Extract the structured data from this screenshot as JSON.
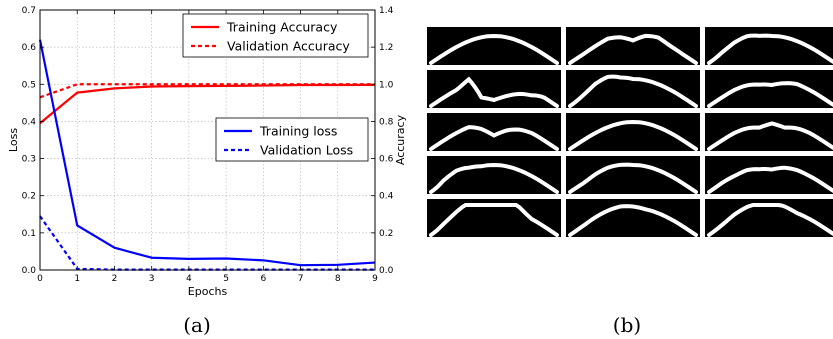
{
  "chart_data": {
    "type": "line",
    "x": [
      0,
      1,
      2,
      3,
      4,
      5,
      6,
      7,
      8,
      9
    ],
    "xlabel": "Epochs",
    "ylabel": "Loss",
    "y2label": "Accuracy",
    "xlim": [
      0,
      9
    ],
    "ylim": [
      0,
      0.7
    ],
    "y2lim": [
      0,
      1.4
    ],
    "xticks": [
      "0",
      "1",
      "2",
      "3",
      "4",
      "5",
      "6",
      "7",
      "8",
      "9"
    ],
    "yticks": [
      "0.0",
      "0.1",
      "0.2",
      "0.3",
      "0.4",
      "0.5",
      "0.6",
      "0.7"
    ],
    "y2ticks": [
      "0.0",
      "0.2",
      "0.4",
      "0.6",
      "0.8",
      "1.0",
      "1.2",
      "1.4"
    ],
    "grid": true,
    "series": [
      {
        "name": "Training Accuracy",
        "axis": "right",
        "color": "#ff0000",
        "style": "solid",
        "values": [
          0.79,
          0.955,
          0.978,
          0.988,
          0.99,
          0.991,
          0.993,
          0.996,
          0.996,
          0.997
        ]
      },
      {
        "name": "Validation Accuracy",
        "axis": "right",
        "color": "#ff0000",
        "style": "dashed",
        "values": [
          0.93,
          1.0,
          1.0,
          1.0,
          1.0,
          1.0,
          1.0,
          1.0,
          1.0,
          1.0
        ]
      },
      {
        "name": "Training loss",
        "axis": "left",
        "color": "#0000ff",
        "style": "solid",
        "values": [
          0.62,
          0.12,
          0.06,
          0.033,
          0.03,
          0.031,
          0.026,
          0.013,
          0.014,
          0.02
        ]
      },
      {
        "name": "Validation Loss",
        "axis": "left",
        "color": "#0000ff",
        "style": "dashed",
        "values": [
          0.145,
          0.003,
          0.001,
          0.001,
          0.001,
          0.001,
          0.001,
          0.001,
          0.001,
          0.001
        ]
      }
    ],
    "legends": [
      {
        "placement": "top-right",
        "entries": [
          "Training Accuracy",
          "Validation Accuracy"
        ]
      },
      {
        "placement": "center-right",
        "entries": [
          "Training loss",
          "Validation Loss"
        ]
      }
    ]
  },
  "captions": {
    "a": "(a)",
    "b": "(b)"
  },
  "image_grid": {
    "rows": 5,
    "cols": 3,
    "background": "#000000",
    "stroke": "#ffffff",
    "profiles": [
      [
        0.0,
        0.0,
        0.0,
        0.0,
        0.0,
        0.0,
        0.0,
        0.0,
        0.0,
        0.0,
        0.0
      ],
      [
        0.0,
        0.0,
        0.05,
        0.1,
        0.0,
        -0.15,
        0.05,
        0.15,
        0.05,
        0.0,
        0.0
      ],
      [
        0.0,
        0.2,
        0.25,
        0.2,
        0.05,
        0.0,
        0.0,
        0.0,
        0.0,
        0.0,
        0.0
      ],
      [
        0.0,
        0.0,
        0.0,
        0.2,
        -0.6,
        -0.7,
        -0.55,
        -0.4,
        -0.3,
        0.0,
        0.0
      ],
      [
        0.0,
        0.2,
        0.35,
        0.3,
        0.1,
        0.0,
        0.0,
        0.0,
        0.0,
        0.0,
        0.0
      ],
      [
        0.0,
        0.0,
        0.0,
        -0.05,
        -0.15,
        -0.2,
        -0.1,
        0.0,
        0.0,
        0.0,
        0.0
      ],
      [
        0.0,
        0.0,
        0.0,
        0.0,
        -0.2,
        -0.45,
        -0.25,
        -0.1,
        0.0,
        0.0,
        0.0
      ],
      [
        0.0,
        0.0,
        0.0,
        0.0,
        0.0,
        0.0,
        0.0,
        0.0,
        0.0,
        0.0,
        0.0
      ],
      [
        0.0,
        0.0,
        0.0,
        -0.05,
        -0.15,
        -0.05,
        -0.15,
        -0.05,
        0.0,
        0.0,
        0.0
      ],
      [
        0.0,
        0.35,
        0.3,
        0.1,
        0.0,
        0.0,
        0.0,
        0.0,
        0.0,
        0.0,
        0.0
      ],
      [
        0.0,
        0.0,
        0.1,
        0.1,
        0.05,
        0.0,
        0.0,
        0.0,
        0.0,
        0.0,
        0.0
      ],
      [
        0.0,
        0.05,
        0.0,
        0.0,
        -0.1,
        -0.15,
        -0.05,
        0.0,
        0.0,
        0.0,
        0.0
      ],
      [
        0.0,
        0.3,
        0.4,
        0.45,
        0.45,
        0.4,
        0.35,
        0.25,
        0.0,
        0.0,
        0.0
      ],
      [
        0.0,
        0.05,
        0.1,
        0.1,
        0.1,
        0.05,
        0.0,
        0.0,
        0.0,
        0.0,
        0.0
      ],
      [
        0.0,
        0.15,
        0.25,
        0.25,
        0.2,
        0.15,
        0.1,
        0.0,
        0.0,
        0.0,
        0.0
      ]
    ]
  }
}
